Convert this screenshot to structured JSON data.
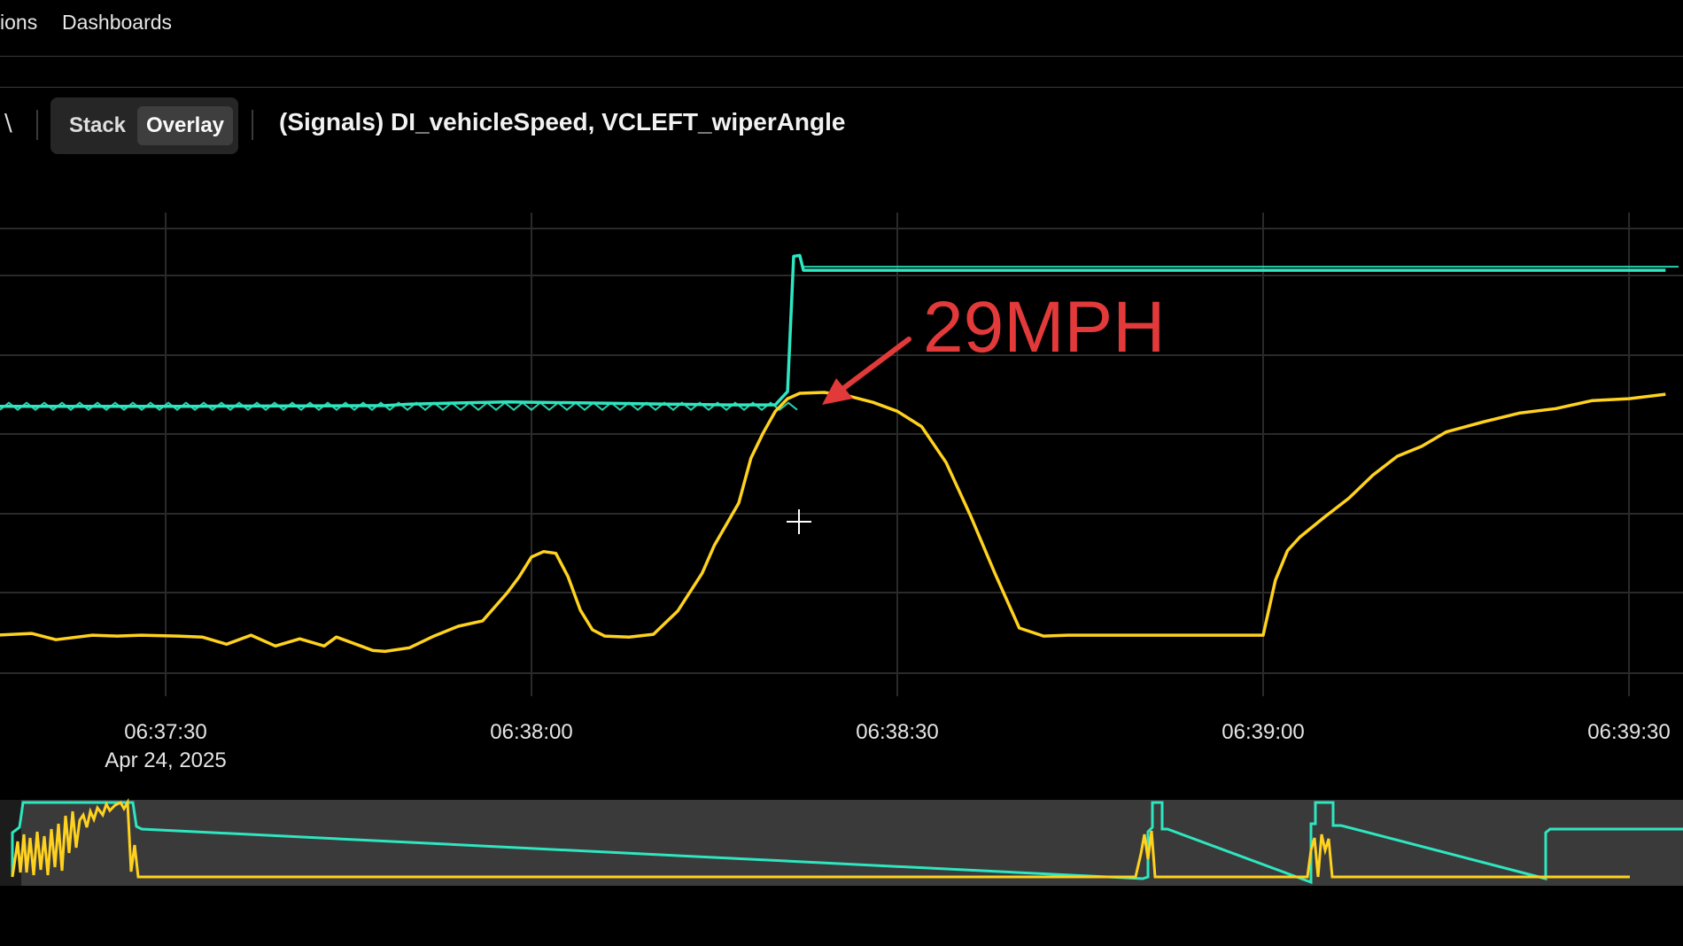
{
  "nav": {
    "items": [
      "ions",
      "Dashboards"
    ]
  },
  "toolbar": {
    "view_modes": [
      "Stack",
      "Overlay"
    ],
    "active_view_mode": "Overlay",
    "panel_title": "(Signals) DI_vehicleSpeed, VCLEFT_wiperAngle"
  },
  "colors": {
    "speed": "#ffd21f",
    "wiper": "#2ee6c0",
    "annotation": "#e23a3a",
    "navigator_bg": "#3a3a3a"
  },
  "icons": {
    "back": "chevron-left-icon",
    "cursor": "crosshair-icon",
    "annotation_arrow": "arrow-icon"
  },
  "annotation": {
    "text": "29MPH"
  },
  "chart_data": {
    "type": "line",
    "x_ticks": [
      "06:37:30",
      "06:38:00",
      "06:38:30",
      "06:39:00",
      "06:39:30"
    ],
    "x_date_label": "Apr 24, 2025",
    "series": [
      {
        "key": "speed",
        "x": [
          "06:37:16",
          "06:37:19",
          "06:37:21",
          "06:37:24",
          "06:37:26",
          "06:37:28",
          "06:37:31",
          "06:37:33",
          "06:37:35",
          "06:37:37",
          "06:37:39",
          "06:37:41",
          "06:37:43",
          "06:37:44",
          "06:37:46",
          "06:37:47",
          "06:37:48",
          "06:37:50",
          "06:37:52",
          "06:37:54",
          "06:37:56",
          "06:37:58",
          "06:37:59",
          "06:38:00",
          "06:38:01",
          "06:38:02",
          "06:38:03",
          "06:38:04",
          "06:38:05",
          "06:38:06",
          "06:38:08",
          "06:38:10",
          "06:38:12",
          "06:38:14",
          "06:38:15",
          "06:38:17",
          "06:38:18",
          "06:38:19",
          "06:38:20",
          "06:38:21",
          "06:38:22",
          "06:38:24",
          "06:38:26",
          "06:38:28",
          "06:38:30",
          "06:38:32",
          "06:38:34",
          "06:38:36",
          "06:38:38",
          "06:38:40",
          "06:38:42",
          "06:38:44",
          "06:38:47",
          "06:38:50",
          "06:39:00",
          "06:39:01",
          "06:39:02",
          "06:39:03",
          "06:39:05",
          "06:39:07",
          "06:39:09",
          "06:39:11",
          "06:39:13",
          "06:39:15",
          "06:39:18",
          "06:39:21",
          "06:39:24",
          "06:39:27",
          "06:39:30",
          "06:39:33"
        ],
        "values": [
          0.5,
          0.7,
          0,
          0.5,
          0.4,
          0.5,
          0.4,
          0.3,
          -0.5,
          0.5,
          -0.7,
          0.1,
          -0.7,
          0.3,
          -0.7,
          -1.2,
          -1.3,
          -0.9,
          0.4,
          1.5,
          2.1,
          5.2,
          7.0,
          9.2,
          9.8,
          9.6,
          7.0,
          3.3,
          1.1,
          0.4,
          0.3,
          0.6,
          3.2,
          7.4,
          10.5,
          15.2,
          20.2,
          23.0,
          25.4,
          26.8,
          27.4,
          27.5,
          27.1,
          26.4,
          25.4,
          23.7,
          19.7,
          13.8,
          7.4,
          1.3,
          0.4,
          0.5,
          0.5,
          0.5,
          0.5,
          6.6,
          9.9,
          11.4,
          13.6,
          15.7,
          18.3,
          20.4,
          21.5,
          23.1,
          24.2,
          25.2,
          25.7,
          26.6,
          26.8,
          27.3
        ],
        "ylim": [
          -5.3,
          47.5
        ]
      },
      {
        "key": "wiper",
        "x": [
          "06:37:16",
          "06:37:32",
          "06:37:48",
          "06:37:50",
          "06:37:58",
          "06:38:16",
          "06:38:20",
          "06:38:21",
          "06:38:21.5",
          "06:38:22",
          "06:38:22.3",
          "06:38:50",
          "06:39:33"
        ],
        "values": [
          0.0,
          0.0,
          0.01,
          0.03,
          0.06,
          0.02,
          0.02,
          0.2,
          2.03,
          2.04,
          1.84,
          1.84,
          1.84
        ],
        "ylim": [
          -3.8,
          2.62
        ]
      }
    ],
    "navigator": {
      "present": true
    }
  }
}
